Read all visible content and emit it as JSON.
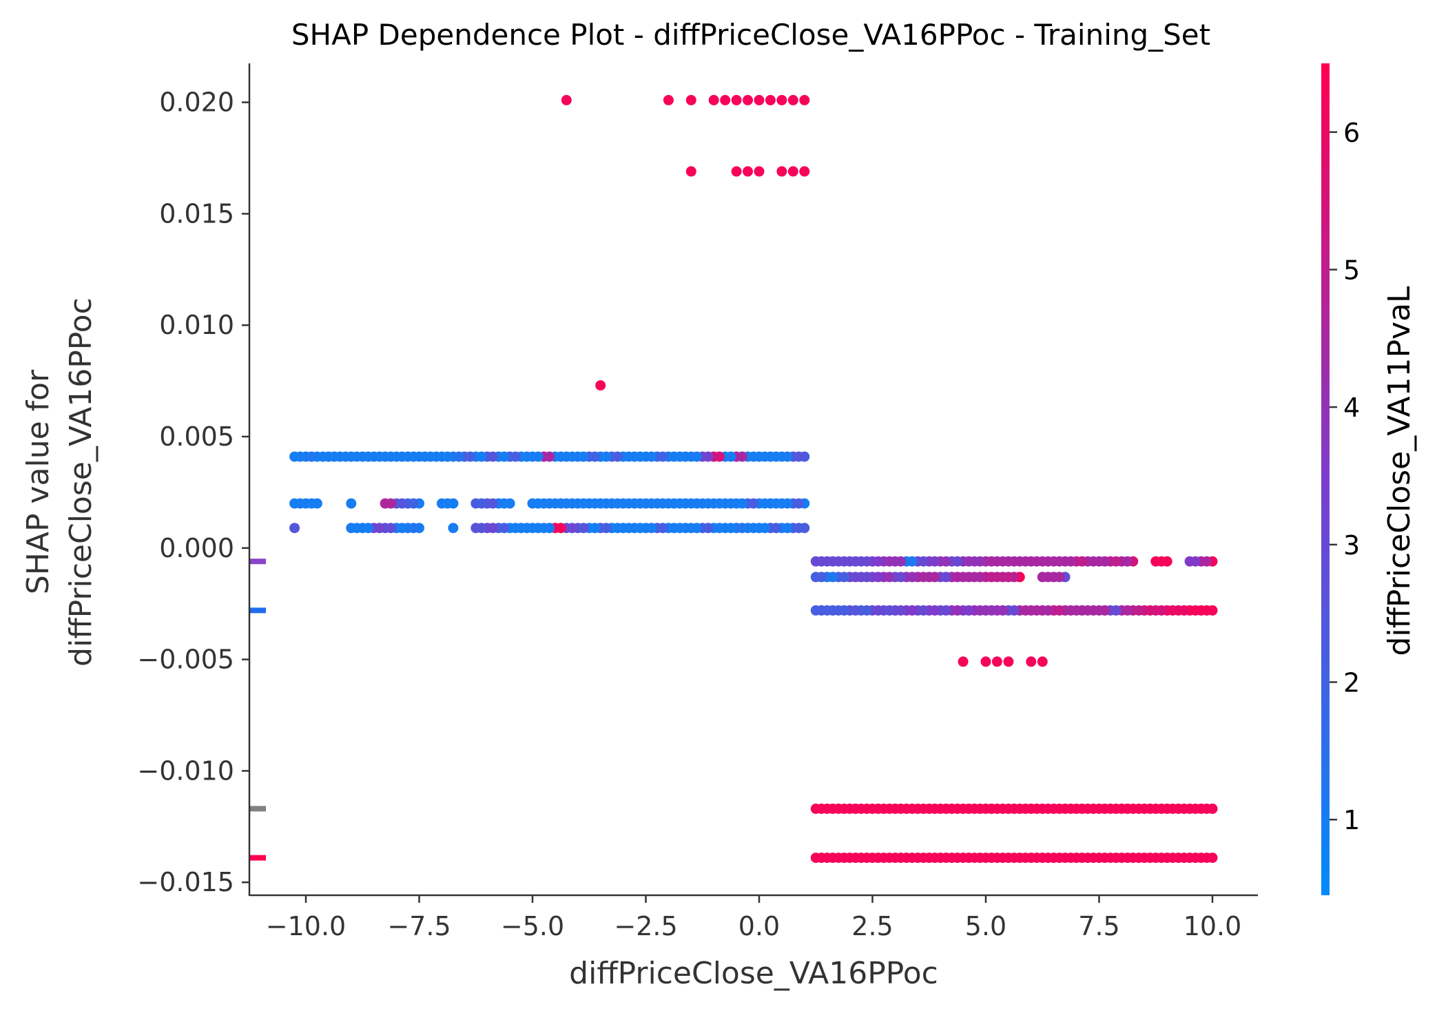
{
  "chart_data": {
    "type": "scatter",
    "title": "SHAP Dependence Plot - diffPriceClose_VA16PPoc - Training_Set",
    "xlabel": "diffPriceClose_VA16PPoc",
    "ylabel_line1": "SHAP value for",
    "ylabel_line2": "diffPriceClose_VA16PPoc",
    "xlim": [
      -11.3,
      11.0
    ],
    "ylim": [
      -0.0156,
      0.0217
    ],
    "x_ticks": [
      -10.0,
      -7.5,
      -5.0,
      -2.5,
      0.0,
      2.5,
      5.0,
      7.5,
      10.0
    ],
    "x_tick_labels": [
      "−10.0",
      "−7.5",
      "−5.0",
      "−2.5",
      "0.0",
      "2.5",
      "5.0",
      "7.5",
      "10.0"
    ],
    "y_ticks": [
      0.02,
      0.015,
      0.01,
      0.005,
      0.0,
      -0.005,
      -0.01,
      -0.015
    ],
    "y_tick_labels": [
      "0.020",
      "0.015",
      "0.010",
      "0.005",
      "0.000",
      "−0.005",
      "−0.010",
      "−0.015"
    ],
    "colorbar": {
      "label": "diffPriceClose_VA11PvaL",
      "range": [
        0.45,
        6.5
      ],
      "ticks": [
        1,
        2,
        3,
        4,
        5,
        6
      ],
      "tick_labels": [
        "1",
        "2",
        "3",
        "4",
        "5",
        "6"
      ],
      "low_color": "#008bfb",
      "mid_color": "#7c3dcc",
      "high_color": "#ff0051"
    },
    "nan_markers": [
      {
        "y": -0.0006,
        "color": "#8c44c8"
      },
      {
        "y": -0.0028,
        "color": "#1f6ef0"
      },
      {
        "y": -0.0117,
        "color": "#808080"
      },
      {
        "y": -0.0139,
        "color": "#ff0051"
      }
    ],
    "rows": [
      {
        "y": 0.0201,
        "xs": [
          -4.25,
          -2.0,
          -1.5,
          -1.0,
          -0.75,
          -0.5,
          -0.25,
          0.0,
          0.25,
          0.5,
          0.75,
          1.0
        ],
        "cs": [
          6.3,
          6.3,
          6.3,
          6.3,
          6.3,
          6.3,
          6.3,
          6.3,
          6.3,
          6.3,
          6.3,
          6.3
        ]
      },
      {
        "y": 0.0169,
        "xs": [
          -1.5,
          -0.5,
          -0.25,
          0.0,
          0.5,
          0.75,
          1.0
        ],
        "cs": [
          6.3,
          6.3,
          6.3,
          6.3,
          6.3,
          6.3,
          6.3
        ]
      },
      {
        "y": 0.0073,
        "xs": [
          -3.5
        ],
        "cs": [
          6.3
        ]
      },
      {
        "y": 0.0041,
        "xs": [
          -10.25,
          -10.0,
          -9.75,
          -9.5,
          -9.25,
          -9.0,
          -8.75,
          -8.5,
          -8.25,
          -8.0,
          -7.75,
          -7.5,
          -7.25,
          -7.0,
          -6.75,
          -6.5,
          -6.25,
          -6.0,
          -5.75,
          -5.5,
          -5.25,
          -5.0,
          -4.75,
          -4.5,
          -4.25,
          -4.0,
          -3.75,
          -3.5,
          -3.25,
          -3.0,
          -2.75,
          -2.5,
          -2.25,
          -2.0,
          -1.75,
          -1.5,
          -1.25,
          -1.0,
          -0.75,
          -0.5,
          -0.25,
          0.0,
          0.25,
          0.5,
          0.75,
          1.0
        ],
        "cs": [
          1.0,
          1.2,
          1.0,
          1.0,
          1.0,
          1.0,
          1.0,
          1.0,
          1.0,
          1.0,
          1.0,
          1.0,
          1.0,
          1.0,
          1.3,
          2.2,
          1.0,
          2.5,
          1.0,
          2.2,
          1.0,
          1.0,
          4.5,
          1.0,
          1.0,
          1.0,
          2.0,
          1.0,
          2.2,
          1.0,
          1.0,
          1.0,
          2.0,
          1.0,
          1.0,
          1.0,
          3.2,
          5.5,
          1.0,
          4.5,
          1.0,
          1.0,
          1.0,
          1.0,
          2.5,
          2.3
        ],
        "bulk": true
      },
      {
        "y": 0.002,
        "xs": [
          -10.25,
          -10.0,
          -9.75,
          -9.0,
          -8.25,
          -8.0,
          -7.75,
          -7.5,
          -7.0,
          -6.75,
          -6.25,
          -6.0,
          -5.75,
          -5.5,
          -5.0,
          -4.75,
          -4.5,
          -4.25,
          -4.0,
          -3.75,
          -3.5,
          -3.25,
          -3.0,
          -2.75,
          -2.5,
          -2.25,
          -2.0,
          -1.75,
          -1.5,
          -1.25,
          -1.0,
          -0.75,
          -0.5,
          -0.25,
          0.0,
          0.25,
          0.5,
          0.75,
          1.0
        ],
        "cs": [
          1.0,
          1.0,
          1.0,
          1.0,
          4.6,
          2.5,
          2.0,
          1.0,
          1.0,
          1.0,
          2.2,
          2.5,
          1.0,
          1.0,
          1.0,
          1.0,
          1.0,
          1.0,
          1.0,
          1.0,
          1.0,
          1.0,
          1.0,
          1.0,
          1.0,
          1.0,
          1.0,
          1.0,
          1.0,
          1.0,
          1.0,
          1.0,
          1.0,
          2.2,
          1.0,
          1.0,
          1.0,
          2.2,
          1.0
        ],
        "bulk": true
      },
      {
        "y": 0.0009,
        "xs": [
          -10.25,
          -9.0,
          -8.75,
          -8.5,
          -8.25,
          -8.0,
          -7.75,
          -7.5,
          -6.75,
          -6.25,
          -6.0,
          -5.75,
          -5.5,
          -5.25,
          -5.0,
          -4.75,
          -4.5,
          -4.25,
          -4.0,
          -3.75,
          -3.5,
          -3.25,
          -3.0,
          -2.75,
          -2.5,
          -2.25,
          -2.0,
          -1.75,
          -1.5,
          -1.25,
          -1.0,
          -0.75,
          -0.5,
          -0.25,
          0.0,
          0.25,
          0.5,
          0.75,
          1.0
        ],
        "cs": [
          2.5,
          1.0,
          1.0,
          3.2,
          2.8,
          1.0,
          1.2,
          1.0,
          1.0,
          2.6,
          3.0,
          2.2,
          1.0,
          1.0,
          1.0,
          1.0,
          6.3,
          3.0,
          2.6,
          1.0,
          2.2,
          1.0,
          1.0,
          1.0,
          1.0,
          2.2,
          1.0,
          1.0,
          1.0,
          2.2,
          1.0,
          1.0,
          1.2,
          1.0,
          1.0,
          2.2,
          1.0,
          2.2,
          2.2
        ],
        "bulk": true
      },
      {
        "y": -0.0006,
        "xs": [
          1.25,
          1.5,
          1.75,
          2.0,
          2.25,
          2.5,
          2.75,
          3.0,
          3.25,
          3.5,
          3.75,
          4.0,
          4.25,
          4.5,
          4.75,
          5.0,
          5.25,
          5.5,
          5.75,
          6.0,
          6.25,
          6.5,
          6.75,
          7.0,
          7.25,
          7.5,
          7.75,
          8.0,
          8.25,
          8.75,
          9.0,
          9.5,
          9.75,
          10.0
        ],
        "cs": [
          3.0,
          3.0,
          3.0,
          3.0,
          3.0,
          3.5,
          4.0,
          4.0,
          1.2,
          3.0,
          3.5,
          4.0,
          3.0,
          4.0,
          4.0,
          4.5,
          4.5,
          4.5,
          4.5,
          4.5,
          4.5,
          4.5,
          4.5,
          5.0,
          4.5,
          4.5,
          5.0,
          4.5,
          5.5,
          6.3,
          6.3,
          3.6,
          4.6,
          6.3
        ],
        "bulk": true
      },
      {
        "y": -0.0013,
        "xs": [
          1.25,
          1.5,
          1.75,
          2.0,
          2.25,
          2.5,
          2.75,
          3.0,
          3.25,
          3.5,
          3.75,
          4.0,
          4.25,
          4.5,
          4.75,
          5.0,
          5.25,
          5.5,
          5.75,
          6.25,
          6.5,
          6.75
        ],
        "cs": [
          2.2,
          1.2,
          2.2,
          3.0,
          3.0,
          3.5,
          4.0,
          3.0,
          4.0,
          4.5,
          4.5,
          3.0,
          4.5,
          4.5,
          4.5,
          5.0,
          5.0,
          5.0,
          6.3,
          4.5,
          4.5,
          2.8
        ],
        "bulk": true
      },
      {
        "y": -0.0028,
        "xs": [
          1.25,
          1.5,
          1.75,
          2.0,
          2.25,
          2.5,
          2.75,
          3.0,
          3.25,
          3.5,
          3.75,
          4.0,
          4.25,
          4.5,
          4.75,
          5.0,
          5.25,
          5.5,
          5.75,
          6.0,
          6.25,
          6.5,
          6.75,
          7.0,
          7.25,
          7.5,
          7.75,
          8.0,
          8.25,
          8.5,
          8.75,
          9.0,
          9.25,
          9.5,
          9.75,
          10.0
        ],
        "cs": [
          2.2,
          2.2,
          2.2,
          2.5,
          2.2,
          3.0,
          2.8,
          3.0,
          3.5,
          3.0,
          3.5,
          3.0,
          4.0,
          3.5,
          4.0,
          4.0,
          4.0,
          3.0,
          4.5,
          4.5,
          4.5,
          5.0,
          4.5,
          4.5,
          4.5,
          4.5,
          3.0,
          4.5,
          5.0,
          5.5,
          5.5,
          6.0,
          6.0,
          6.3,
          6.3,
          6.3
        ],
        "bulk": true
      },
      {
        "y": -0.0051,
        "xs": [
          4.5,
          5.0,
          5.25,
          5.5,
          6.0,
          6.25
        ],
        "cs": [
          6.3,
          6.3,
          6.3,
          6.3,
          6.3,
          6.3
        ]
      },
      {
        "y": -0.0117,
        "xs": [
          1.25,
          1.5,
          1.75,
          2.0,
          2.25,
          2.5,
          2.75,
          3.0,
          3.25,
          3.5,
          3.75,
          4.0,
          4.25,
          4.5,
          4.75,
          5.0,
          5.25,
          5.5,
          5.75,
          6.0,
          6.25,
          6.5,
          6.75,
          7.0,
          7.25,
          7.5,
          7.75,
          8.0,
          8.25,
          8.5,
          8.75,
          9.0,
          9.25,
          9.5,
          9.75,
          10.0
        ],
        "cs": [
          6.3,
          6.3,
          6.3,
          6.3,
          6.3,
          6.3,
          6.3,
          6.3,
          6.3,
          6.3,
          6.3,
          6.3,
          6.3,
          6.3,
          6.3,
          6.3,
          6.3,
          6.3,
          6.3,
          6.3,
          6.3,
          6.3,
          6.3,
          6.3,
          6.3,
          6.3,
          6.3,
          6.3,
          6.3,
          6.3,
          6.3,
          6.3,
          6.3,
          6.3,
          6.3,
          6.3
        ],
        "bulk": true
      },
      {
        "y": -0.0139,
        "xs": [
          1.25,
          1.5,
          1.75,
          2.0,
          2.25,
          2.5,
          2.75,
          3.0,
          3.25,
          3.5,
          3.75,
          4.0,
          4.25,
          4.5,
          4.75,
          5.0,
          5.25,
          5.5,
          5.75,
          6.0,
          6.25,
          6.5,
          6.75,
          7.0,
          7.25,
          7.5,
          7.75,
          8.0,
          8.25,
          8.5,
          8.75,
          9.0,
          9.25,
          9.5,
          9.75,
          10.0
        ],
        "cs": [
          6.3,
          6.3,
          6.3,
          6.3,
          6.3,
          6.3,
          6.3,
          6.3,
          6.3,
          6.3,
          6.3,
          6.3,
          6.3,
          6.3,
          6.3,
          6.3,
          6.3,
          6.3,
          6.3,
          6.3,
          6.3,
          6.3,
          6.3,
          6.3,
          6.3,
          6.3,
          6.3,
          6.3,
          6.3,
          6.3,
          6.3,
          6.3,
          6.3,
          6.3,
          6.3,
          6.3
        ],
        "bulk": true
      }
    ]
  }
}
